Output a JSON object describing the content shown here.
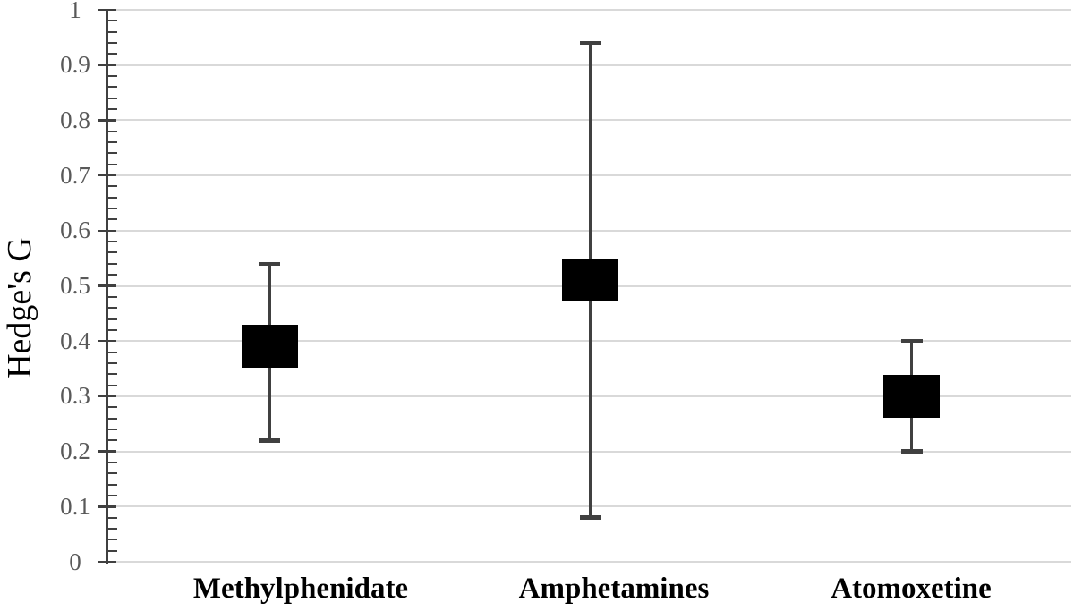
{
  "chart_data": {
    "type": "scatter",
    "subtype": "point-estimate-with-95ci-error-bars",
    "title": "",
    "xlabel": "",
    "ylabel": "Hedge's G",
    "categories": [
      "Methylphenidate",
      "Amphetamines",
      "Atomoxetine"
    ],
    "series": [
      {
        "name": "Hedge's G",
        "values": [
          0.39,
          0.51,
          0.3
        ],
        "ci_lower": [
          0.22,
          0.08,
          0.2
        ],
        "ci_upper": [
          0.54,
          0.94,
          0.4
        ]
      }
    ],
    "ylim": [
      0,
      1
    ],
    "ytick_interval": 0.1,
    "yminor_tick_interval": 0.02,
    "ytick_labels": [
      "0",
      "0.1",
      "0.2",
      "0.3",
      "0.4",
      "0.5",
      "0.6",
      "0.7",
      "0.8",
      "0.9",
      "1"
    ],
    "grid": true,
    "legend": false,
    "colors": {
      "marker": "#000000",
      "error_bar": "#404040",
      "gridline": "#d9d9d9",
      "axis": "#404040",
      "tick_label": "#595959",
      "category_label": "#000000",
      "axis_title": "#000000",
      "background": "#ffffff"
    }
  }
}
